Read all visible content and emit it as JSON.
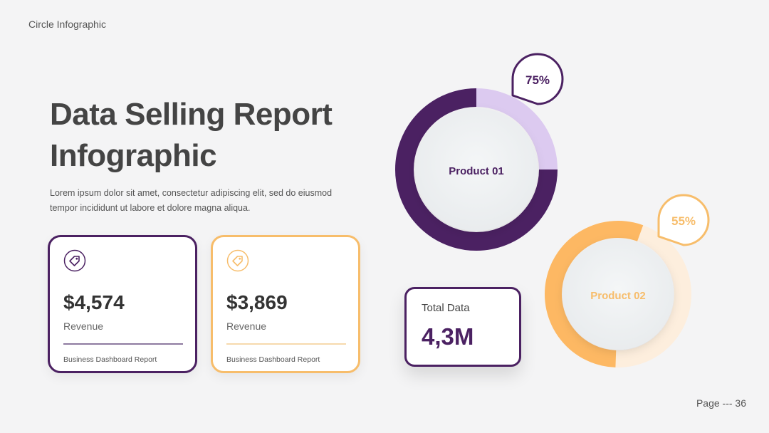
{
  "header": {
    "label": "Circle Infographic"
  },
  "title": {
    "line1": "Data Selling Report",
    "line2": "Infographic"
  },
  "description": {
    "line1": "Lorem ipsum dolor sit amet, consectetur adipiscing elit, sed do eiusmod",
    "line2": "tempor incididunt ut labore et dolore magna aliqua."
  },
  "cards": [
    {
      "icon": "tag-icon",
      "amount": "$4,574",
      "label": "Revenue",
      "footer": "Business Dashboard Report",
      "color": "#4b2162"
    },
    {
      "icon": "tag-icon",
      "amount": "$3,869",
      "label": "Revenue",
      "footer": "Business Dashboard Report",
      "color": "#f7bd6b"
    }
  ],
  "total": {
    "label": "Total Data",
    "value": "4,3M"
  },
  "products": [
    {
      "name": "Product 01",
      "percent_label": "75%",
      "fraction": 0.75,
      "color": "#4b2162",
      "track_color": "#dccaf0"
    },
    {
      "name": "Product 02",
      "percent_label": "55%",
      "fraction": 0.55,
      "color": "#fdb863",
      "track_color": "#fdeedd"
    }
  ],
  "footer": {
    "page": "Page --- 36"
  }
}
